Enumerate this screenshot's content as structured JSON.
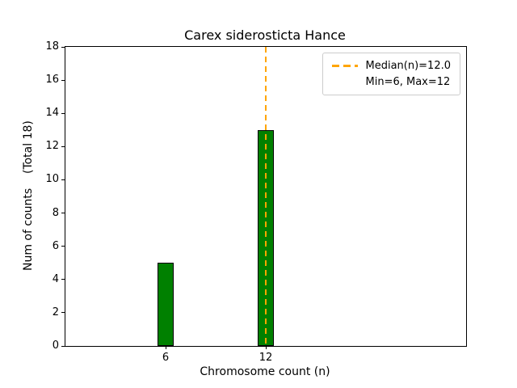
{
  "chart_data": {
    "type": "bar",
    "title": "Carex siderosticta Hance",
    "xlabel": "Chromosome count (n)",
    "ylabel": "Num of counts    (Total 18)",
    "categories": [
      6,
      12
    ],
    "values": [
      5,
      13
    ],
    "total_counts": 18,
    "bar_color": "#008000",
    "bar_edge_color": "#000000",
    "bar_width": 1.0,
    "xlim": [
      0,
      24
    ],
    "ylim": [
      0,
      18
    ],
    "xticks": [
      6,
      12
    ],
    "yticks": [
      0,
      2,
      4,
      6,
      8,
      10,
      12,
      14,
      16,
      18
    ],
    "grid": false,
    "median_line": {
      "x": 12,
      "color": "#FFA500",
      "style": "dashed",
      "label": "Median(n)=12.0"
    },
    "legend": {
      "position": "upper right",
      "entries": [
        {
          "sample": "dashed-line",
          "color": "#FFA500",
          "label": "Median(n)=12.0"
        },
        {
          "sample": "none",
          "color": "",
          "label": "Min=6, Max=12"
        }
      ]
    }
  }
}
